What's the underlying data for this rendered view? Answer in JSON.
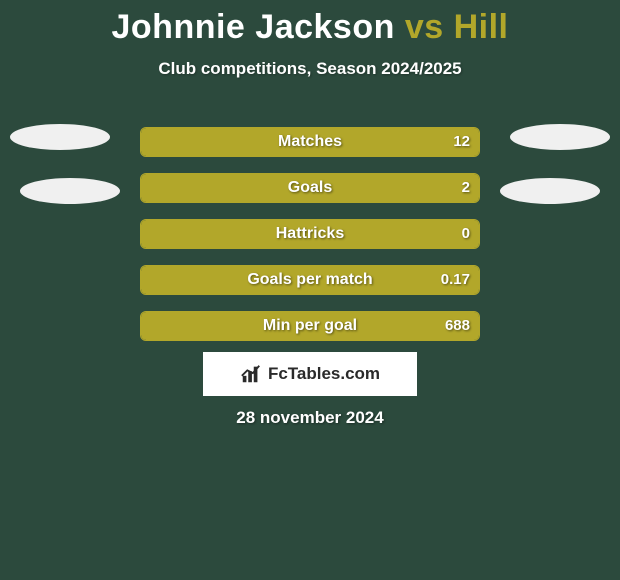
{
  "background_color": "#2c4a3d",
  "title": {
    "player1": "Johnnie Jackson",
    "vs": " vs ",
    "player2": "Hill",
    "player1_color": "#ffffff",
    "player2_color": "#b2a72a",
    "fontsize": 34
  },
  "subtitle": {
    "text": "Club competitions, Season 2024/2025",
    "fontsize": 17,
    "color": "#ffffff"
  },
  "bars": {
    "track_border_color": "#b2a72a",
    "track_bg_color": "transparent",
    "fill_color": "#b2a72a",
    "track_width": 340,
    "track_height": 30,
    "label_color": "#ffffff",
    "value_color": "#ffffff",
    "items": [
      {
        "label": "Matches",
        "value": "12",
        "fill_pct": 100
      },
      {
        "label": "Goals",
        "value": "2",
        "fill_pct": 100
      },
      {
        "label": "Hattricks",
        "value": "0",
        "fill_pct": 100
      },
      {
        "label": "Goals per match",
        "value": "0.17",
        "fill_pct": 100
      },
      {
        "label": "Min per goal",
        "value": "688",
        "fill_pct": 100
      }
    ]
  },
  "ellipses": {
    "color": "#f0f0f0"
  },
  "brand": {
    "name": "FcTables.com",
    "box_bg": "#ffffff",
    "text_color": "#2a2a2a",
    "icon_color": "#2a2a2a"
  },
  "footer": {
    "date": "28 november 2024",
    "color": "#ffffff",
    "fontsize": 17
  }
}
